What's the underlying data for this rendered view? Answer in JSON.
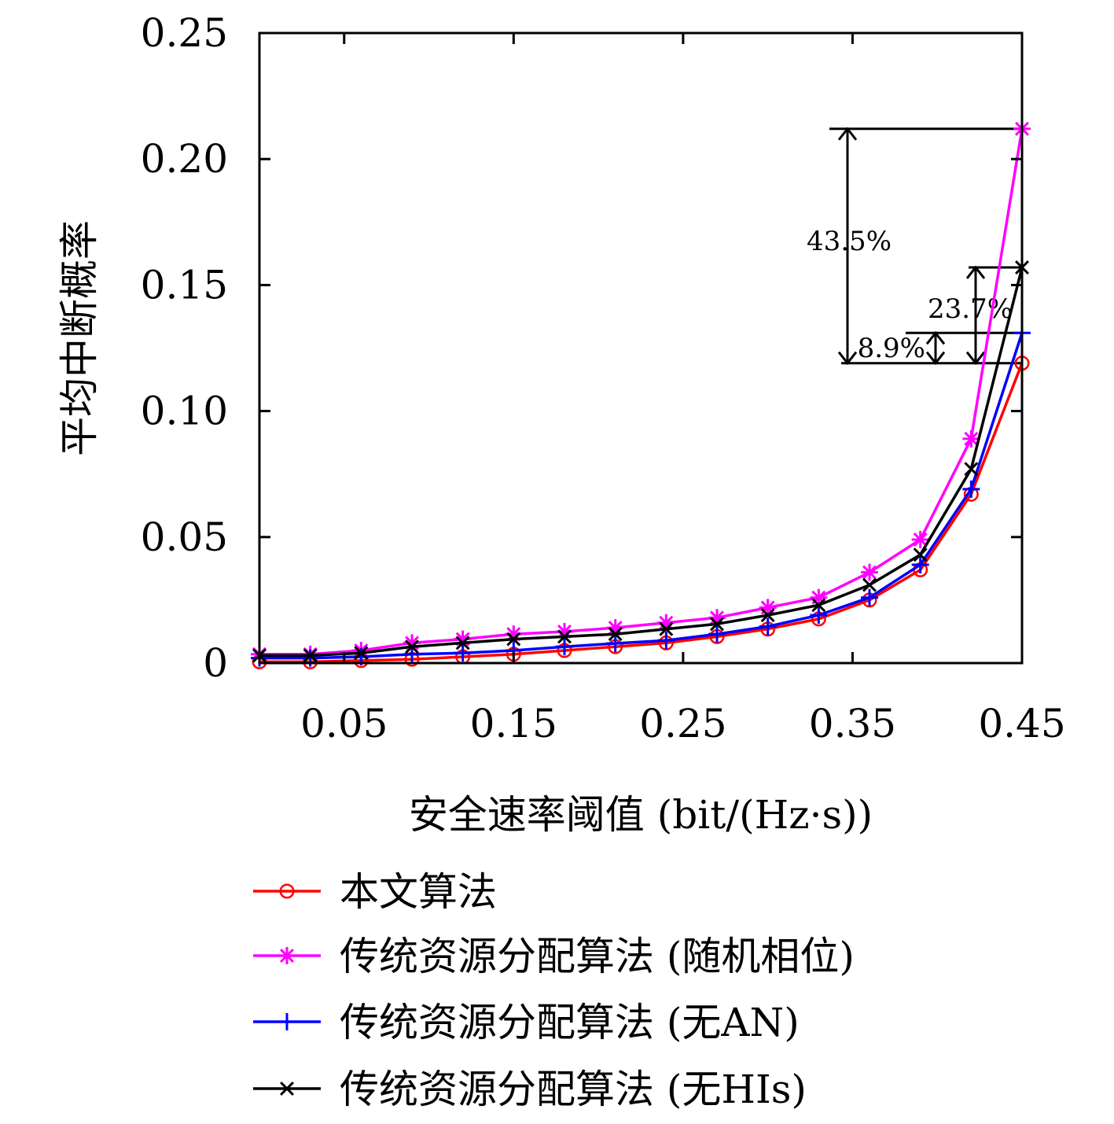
{
  "chart_data": {
    "type": "line",
    "xlabel": "安全速率阈值 (bit/(Hz·s))",
    "ylabel": "平均中断概率",
    "xlim": [
      0.0,
      0.45
    ],
    "ylim": [
      0,
      0.25
    ],
    "xticks": [
      0.05,
      0.15,
      0.25,
      0.35,
      0.45
    ],
    "xtick_labels": [
      "0.05",
      "0.15",
      "0.25",
      "0.35",
      "0.45"
    ],
    "yticks": [
      0,
      0.05,
      0.1,
      0.15,
      0.2,
      0.25
    ],
    "ytick_labels": [
      "0",
      "0.05",
      "0.10",
      "0.15",
      "0.20",
      "0.25"
    ],
    "grid": false,
    "legend_position": "bottom",
    "x": [
      0.0,
      0.03,
      0.06,
      0.09,
      0.12,
      0.15,
      0.18,
      0.21,
      0.24,
      0.27,
      0.3,
      0.33,
      0.36,
      0.39,
      0.42,
      0.45
    ],
    "series": [
      {
        "name": "本文算法",
        "color": "#ff0000",
        "marker": "circle",
        "values": [
          0.0005,
          0.0005,
          0.001,
          0.0015,
          0.0025,
          0.0035,
          0.005,
          0.0065,
          0.008,
          0.0105,
          0.0135,
          0.0175,
          0.025,
          0.037,
          0.067,
          0.119
        ]
      },
      {
        "name": "传统资源分配算法 (随机相位)",
        "color": "#ff00ff",
        "marker": "star",
        "values": [
          0.0035,
          0.0035,
          0.005,
          0.008,
          0.0095,
          0.0115,
          0.0125,
          0.014,
          0.016,
          0.018,
          0.022,
          0.026,
          0.036,
          0.049,
          0.089,
          0.212
        ]
      },
      {
        "name": "传统资源分配算法 (无AN)",
        "color": "#0000ff",
        "marker": "plus",
        "values": [
          0.002,
          0.002,
          0.0025,
          0.0035,
          0.004,
          0.005,
          0.0065,
          0.0078,
          0.009,
          0.0115,
          0.0145,
          0.019,
          0.026,
          0.039,
          0.069,
          0.131
        ]
      },
      {
        "name": "传统资源分配算法 (无HIs)",
        "color": "#000000",
        "marker": "x",
        "values": [
          0.003,
          0.003,
          0.004,
          0.0065,
          0.008,
          0.0095,
          0.0105,
          0.0115,
          0.0135,
          0.0155,
          0.019,
          0.023,
          0.031,
          0.043,
          0.077,
          0.157
        ]
      }
    ],
    "annotations": [
      {
        "text": "43.5%",
        "x": 0.45,
        "from": 0.212,
        "to": 0.119
      },
      {
        "text": "23.7%",
        "x": 0.45,
        "from": 0.157,
        "to": 0.119
      },
      {
        "text": "8.9%",
        "x": 0.45,
        "from": 0.131,
        "to": 0.119
      }
    ]
  }
}
